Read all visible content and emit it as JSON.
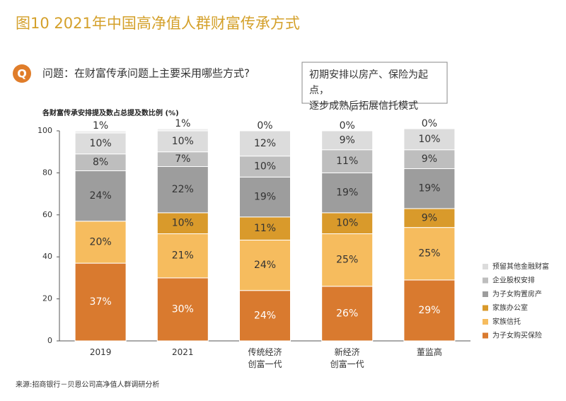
{
  "chart_data": {
    "type": "stacked_bar",
    "title": "图10 2021年中国高净值人群财富传承方式",
    "question": "问题：在财富传承问题上主要采用哪些方式?",
    "callout": "初期安排以房产、保险为起点，\n逐步成熟后拓展信托模式",
    "y_axis_label": "各财富传承安排提及数占总提及数比例 (%)",
    "categories": [
      "2019",
      "2021",
      "传统经济\n创富一代",
      "新经济\n创富一代",
      "董监高"
    ],
    "ylim": [
      0,
      100
    ],
    "yticks": [
      0,
      20,
      40,
      60,
      80,
      100
    ],
    "series": [
      {
        "name": "为子女购买保险",
        "color": "#d97a2f",
        "values": [
          37,
          30,
          24,
          26,
          29
        ],
        "value_labels": [
          "37%",
          "30%",
          "24%",
          "26%",
          "29%"
        ]
      },
      {
        "name": "家族信托",
        "color": "#f6bc5e",
        "values": [
          20,
          21,
          24,
          25,
          25
        ],
        "value_labels": [
          "20%",
          "21%",
          "24%",
          "25%",
          "25%"
        ]
      },
      {
        "name": "家族办公室",
        "color": "#d99a2b",
        "values": [
          null,
          10,
          11,
          10,
          9
        ],
        "value_labels": [
          null,
          "10%",
          "11%",
          "10%",
          "9%"
        ]
      },
      {
        "name": "为子女购置房产",
        "color": "#9d9d9d",
        "values": [
          24,
          22,
          19,
          19,
          19
        ],
        "value_labels": [
          "24%",
          "22%",
          "19%",
          "19%",
          "19%"
        ]
      },
      {
        "name": "企业股权安排",
        "color": "#bebebe",
        "values": [
          8,
          7,
          10,
          11,
          9
        ],
        "value_labels": [
          "8%",
          "7%",
          "10%",
          "11%",
          "9%"
        ]
      },
      {
        "name": "预留其他金融财富",
        "color": "#dcdcdc",
        "values": [
          10,
          10,
          12,
          9,
          10
        ],
        "value_labels": [
          "10%",
          "10%",
          "12%",
          "9%",
          "10%"
        ]
      },
      {
        "color": "#ececec",
        "values": [
          1,
          1,
          0,
          0,
          0
        ],
        "value_labels": [
          "1%",
          "1%",
          "0%",
          "0%",
          "0%"
        ]
      }
    ]
  },
  "source": "来源:招商银行－贝恩公司高净值人群调研分析"
}
